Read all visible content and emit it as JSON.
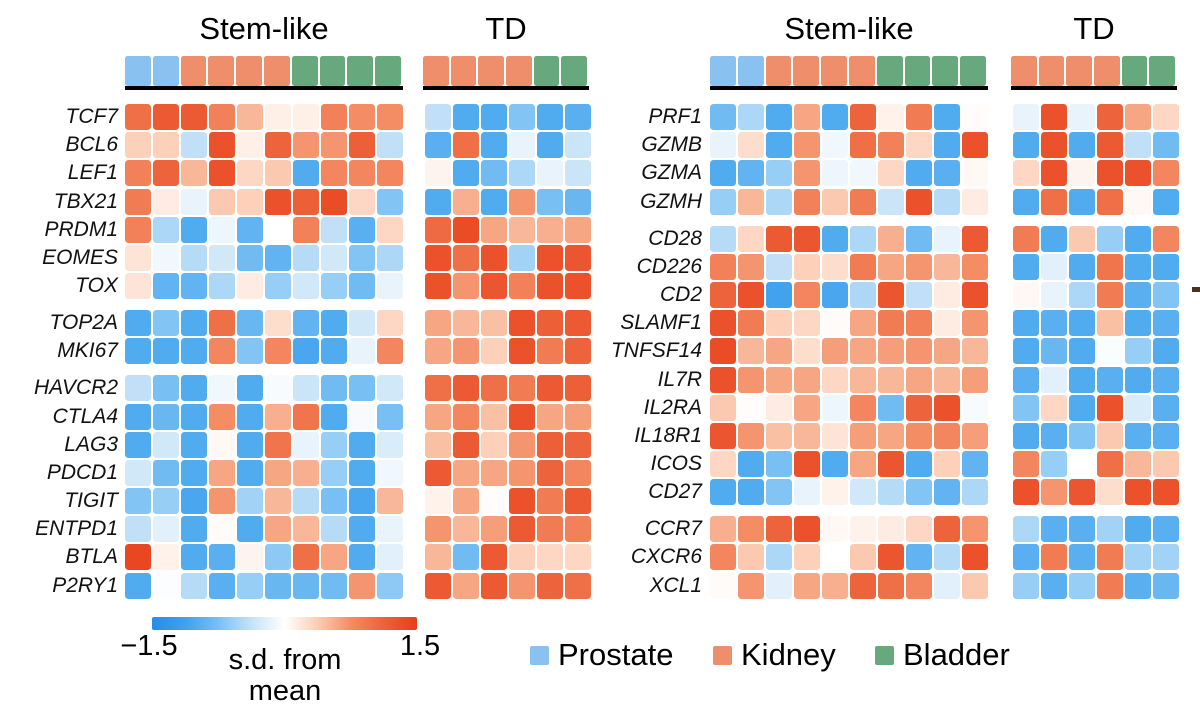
{
  "figure": {
    "colorbar": {
      "min_label": "−1.5",
      "max_label": "1.5",
      "title_line1": "s.d. from",
      "title_line2": "mean"
    },
    "legend": {
      "items": [
        {
          "label": "Prostate",
          "color": "#89c2f0"
        },
        {
          "label": "Kidney",
          "color": "#ee8e6b"
        },
        {
          "label": "Bladder",
          "color": "#67a97c"
        }
      ]
    }
  },
  "chart_data": {
    "type": "heatmap",
    "value_units": "s.d. from mean",
    "value_range": [
      -1.5,
      1.5
    ],
    "colormap": {
      "negative_end": "#3496e6",
      "midpoint": "#ffffff",
      "positive_end": "#e83e1a"
    },
    "column_groups": {
      "stem_label": "Stem-like",
      "td_label": "TD",
      "stem_tissues": [
        "Prostate",
        "Prostate",
        "Kidney",
        "Kidney",
        "Kidney",
        "Kidney",
        "Bladder",
        "Bladder",
        "Bladder",
        "Bladder"
      ],
      "td_tissues": [
        "Kidney",
        "Kidney",
        "Kidney",
        "Kidney",
        "Bladder",
        "Bladder"
      ]
    },
    "tissue_colors": {
      "Prostate": "#89c2f0",
      "Kidney": "#ee8e6b",
      "Bladder": "#67a97c"
    },
    "panels": [
      {
        "groups": [
          {
            "rows": [
              {
                "gene": "TCF7",
                "stem": [
                  1.0,
                  1.2,
                  1.2,
                  0.85,
                  0.5,
                  0.12,
                  0.12,
                  0.85,
                  0.75,
                  0.75
                ],
                "td": [
                  -0.4,
                  -1.0,
                  -1.0,
                  -0.7,
                  -1.0,
                  -0.95
                ]
              },
              {
                "gene": "BCL6",
                "stem": [
                  0.35,
                  0.35,
                  -0.4,
                  1.3,
                  0.12,
                  1.1,
                  0.7,
                  0.7,
                  1.15,
                  -0.4
                ],
                "td": [
                  -0.95,
                  1.0,
                  -1.0,
                  -0.15,
                  -1.0,
                  -0.35
                ]
              },
              {
                "gene": "LEF1",
                "stem": [
                  0.85,
                  1.1,
                  0.5,
                  1.3,
                  0.3,
                  0.4,
                  -1.0,
                  0.8,
                  0.8,
                  0.8
                ],
                "td": [
                  0.08,
                  -1.0,
                  -0.8,
                  -0.5,
                  -0.15,
                  -0.35
                ]
              },
              {
                "gene": "TBX21",
                "stem": [
                  0.9,
                  0.15,
                  -0.15,
                  0.4,
                  0.35,
                  1.3,
                  1.15,
                  1.35,
                  0.3,
                  -0.7
                ],
                "td": [
                  -1.0,
                  0.55,
                  -1.0,
                  0.7,
                  -0.75,
                  -0.85
                ]
              },
              {
                "gene": "PRDM1",
                "stem": [
                  0.85,
                  -0.5,
                  -1.0,
                  -0.12,
                  -0.9,
                  0.0,
                  0.85,
                  -0.4,
                  -0.95,
                  0.3
                ],
                "td": [
                  1.05,
                  1.35,
                  0.6,
                  0.5,
                  0.55,
                  0.6
                ]
              },
              {
                "gene": "EOMES",
                "stem": [
                  0.2,
                  -0.1,
                  -0.45,
                  -0.3,
                  -0.8,
                  -0.9,
                  -0.45,
                  -0.3,
                  -0.7,
                  -0.5
                ],
                "td": [
                  1.3,
                  1.0,
                  1.3,
                  -0.55,
                  1.3,
                  1.25
                ]
              },
              {
                "gene": "TOX",
                "stem": [
                  0.2,
                  -0.9,
                  -0.9,
                  -0.5,
                  0.15,
                  -0.6,
                  -0.3,
                  -0.6,
                  -0.8,
                  -0.15
                ],
                "td": [
                  1.3,
                  0.7,
                  1.25,
                  0.85,
                  1.3,
                  1.3
                ]
              }
            ]
          },
          {
            "rows": [
              {
                "gene": "TOP2A",
                "stem": [
                  -1.0,
                  -0.7,
                  -1.0,
                  1.0,
                  -0.85,
                  0.25,
                  -0.9,
                  -1.0,
                  -0.3,
                  0.3
                ],
                "td": [
                  0.6,
                  0.5,
                  0.45,
                  1.3,
                  1.15,
                  1.2
                ]
              },
              {
                "gene": "MKI67",
                "stem": [
                  -1.0,
                  -1.0,
                  -1.0,
                  0.8,
                  -0.7,
                  0.8,
                  -1.05,
                  -1.0,
                  -0.15,
                  0.8
                ],
                "td": [
                  0.6,
                  0.7,
                  0.35,
                  1.3,
                  0.9,
                  1.1
                ]
              }
            ]
          },
          {
            "rows": [
              {
                "gene": "HAVCR2",
                "stem": [
                  -0.4,
                  -0.75,
                  -1.0,
                  -0.1,
                  -1.0,
                  -0.05,
                  -0.35,
                  -0.8,
                  -0.75,
                  -0.3
                ],
                "td": [
                  1.0,
                  1.2,
                  1.0,
                  0.9,
                  1.2,
                  1.15
                ]
              },
              {
                "gene": "CTLA4",
                "stem": [
                  -1.0,
                  -0.85,
                  -1.0,
                  0.75,
                  -1.0,
                  0.55,
                  0.95,
                  -1.0,
                  -0.05,
                  -0.75
                ],
                "td": [
                  0.6,
                  0.8,
                  0.45,
                  1.3,
                  0.6,
                  0.65
                ]
              },
              {
                "gene": "LAG3",
                "stem": [
                  -1.0,
                  -0.3,
                  -1.0,
                  0.05,
                  -1.0,
                  0.95,
                  -0.15,
                  -0.6,
                  -1.0,
                  -0.25
                ],
                "td": [
                  0.45,
                  1.2,
                  0.35,
                  0.7,
                  1.15,
                  1.1
                ]
              },
              {
                "gene": "PDCD1",
                "stem": [
                  -0.3,
                  -0.8,
                  -1.0,
                  0.6,
                  -1.0,
                  0.6,
                  0.55,
                  -0.6,
                  -1.0,
                  -0.1
                ],
                "td": [
                  1.2,
                  0.6,
                  0.6,
                  0.7,
                  1.1,
                  0.8
                ]
              },
              {
                "gene": "TIGIT",
                "stem": [
                  -0.7,
                  -0.6,
                  -1.05,
                  0.7,
                  -0.55,
                  0.5,
                  -0.45,
                  -0.75,
                  -1.05,
                  0.5
                ],
                "td": [
                  0.1,
                  0.6,
                  0.02,
                  1.3,
                  0.9,
                  1.2
                ]
              },
              {
                "gene": "ENTPD1",
                "stem": [
                  -0.4,
                  -0.2,
                  -1.0,
                  0.03,
                  -1.0,
                  0.6,
                  0.5,
                  -0.45,
                  -1.0,
                  -0.15
                ],
                "td": [
                  0.7,
                  0.5,
                  0.65,
                  1.2,
                  0.9,
                  0.85
                ]
              },
              {
                "gene": "BTLA",
                "stem": [
                  1.4,
                  0.1,
                  -1.0,
                  -0.95,
                  0.08,
                  -0.65,
                  1.0,
                  0.6,
                  -1.0,
                  -0.2
                ],
                "td": [
                  0.5,
                  -0.8,
                  1.2,
                  0.35,
                  0.3,
                  0.3
                ]
              },
              {
                "gene": "P2RY1",
                "stem": [
                  -1.0,
                  -0.02,
                  -0.45,
                  -0.95,
                  -0.6,
                  -0.85,
                  -0.85,
                  -0.8,
                  0.7,
                  -0.65
                ],
                "td": [
                  1.2,
                  0.6,
                  1.2,
                  0.7,
                  1.1,
                  1.0
                ]
              }
            ]
          }
        ]
      },
      {
        "groups": [
          {
            "rows": [
              {
                "gene": "PRF1",
                "stem": [
                  -0.8,
                  -0.5,
                  -1.0,
                  0.6,
                  -1.0,
                  1.1,
                  0.1,
                  0.9,
                  -1.0,
                  0.02
                ],
                "td": [
                  -0.15,
                  1.3,
                  -0.15,
                  1.1,
                  0.6,
                  0.3
                ]
              },
              {
                "gene": "GZMB",
                "stem": [
                  -0.15,
                  0.25,
                  -1.0,
                  0.7,
                  -0.1,
                  1.0,
                  0.85,
                  0.3,
                  -1.0,
                  1.3
                ],
                "td": [
                  -1.0,
                  1.3,
                  -1.0,
                  1.2,
                  -0.4,
                  -0.8
                ]
              },
              {
                "gene": "GZMA",
                "stem": [
                  -1.0,
                  -0.9,
                  -0.6,
                  0.7,
                  -0.12,
                  -0.1,
                  0.3,
                  -1.0,
                  -0.95,
                  0.05
                ],
                "td": [
                  0.3,
                  1.3,
                  0.08,
                  1.3,
                  1.3,
                  0.8
                ]
              },
              {
                "gene": "GZMH",
                "stem": [
                  -0.6,
                  0.5,
                  -0.5,
                  0.85,
                  0.4,
                  0.9,
                  -0.35,
                  1.3,
                  -0.45,
                  0.15
                ],
                "td": [
                  -1.0,
                  1.0,
                  -1.0,
                  1.0,
                  0.05,
                  -1.0
                ]
              }
            ]
          },
          {
            "rows": [
              {
                "gene": "CD28",
                "stem": [
                  -0.45,
                  0.3,
                  1.2,
                  1.25,
                  -1.0,
                  -0.5,
                  0.55,
                  -0.8,
                  -0.15,
                  1.2
                ],
                "td": [
                  0.9,
                  -1.0,
                  0.4,
                  -0.6,
                  -1.0,
                  0.8
                ]
              },
              {
                "gene": "CD226",
                "stem": [
                  0.85,
                  0.7,
                  -0.4,
                  0.35,
                  0.25,
                  0.9,
                  0.6,
                  0.7,
                  0.5,
                  0.75
                ],
                "td": [
                  -1.0,
                  -0.2,
                  -1.0,
                  0.95,
                  -1.0,
                  -1.0
                ]
              },
              {
                "gene": "CD2",
                "stem": [
                  1.1,
                  1.3,
                  -1.1,
                  0.8,
                  -1.05,
                  -0.5,
                  1.25,
                  -0.4,
                  0.15,
                  1.3
                ],
                "td": [
                  0.05,
                  -0.15,
                  -0.5,
                  0.9,
                  -0.95,
                  -0.7
                ]
              },
              {
                "gene": "SLAMF1",
                "stem": [
                  1.3,
                  0.9,
                  0.35,
                  0.3,
                  0.03,
                  0.6,
                  0.9,
                  0.85,
                  0.15,
                  0.7
                ],
                "td": [
                  -1.0,
                  -0.95,
                  -1.0,
                  0.45,
                  -1.0,
                  -0.95
                ]
              },
              {
                "gene": "TNFSF14",
                "stem": [
                  1.35,
                  0.5,
                  0.6,
                  0.25,
                  0.65,
                  0.6,
                  0.65,
                  0.7,
                  0.6,
                  0.5
                ],
                "td": [
                  -1.0,
                  -0.85,
                  -1.0,
                  -0.03,
                  -0.6,
                  -1.0
                ]
              },
              {
                "gene": "IL7R",
                "stem": [
                  1.3,
                  0.7,
                  0.6,
                  0.6,
                  0.3,
                  0.5,
                  0.5,
                  0.6,
                  0.5,
                  0.65
                ],
                "td": [
                  -0.95,
                  -0.2,
                  -1.0,
                  -0.95,
                  -1.0,
                  -0.95
                ]
              },
              {
                "gene": "IL2RA",
                "stem": [
                  0.4,
                  0.02,
                  0.15,
                  0.6,
                  -0.12,
                  0.8,
                  -0.8,
                  1.1,
                  1.3,
                  -0.05
                ],
                "td": [
                  -0.7,
                  0.3,
                  -1.0,
                  1.3,
                  -0.25,
                  -0.95
                ]
              },
              {
                "gene": "IL18R1",
                "stem": [
                  1.25,
                  0.7,
                  0.45,
                  0.5,
                  0.2,
                  0.65,
                  0.6,
                  0.75,
                  0.8,
                  0.65
                ],
                "td": [
                  -1.0,
                  -0.95,
                  -0.7,
                  0.4,
                  -0.95,
                  -0.95
                ]
              },
              {
                "gene": "ICOS",
                "stem": [
                  0.3,
                  -1.0,
                  -0.75,
                  1.3,
                  -1.0,
                  0.6,
                  1.25,
                  -1.0,
                  0.35,
                  -0.9
                ],
                "td": [
                  0.8,
                  -0.6,
                  0.0,
                  1.0,
                  0.5,
                  0.4
                ]
              },
              {
                "gene": "CD27",
                "stem": [
                  -1.0,
                  -1.0,
                  -0.7,
                  -0.15,
                  0.1,
                  -0.3,
                  -0.45,
                  -0.7,
                  -0.9,
                  -0.5
                ],
                "td": [
                  1.3,
                  0.7,
                  1.25,
                  0.25,
                  1.3,
                  1.3
                ]
              }
            ]
          },
          {
            "rows": [
              {
                "gene": "CCR7",
                "stem": [
                  0.55,
                  0.75,
                  1.1,
                  1.3,
                  0.05,
                  0.1,
                  0.15,
                  0.3,
                  1.1,
                  0.7
                ],
                "td": [
                  -0.5,
                  -0.95,
                  -0.95,
                  -0.55,
                  -1.0,
                  -0.95
                ]
              },
              {
                "gene": "CXCR6",
                "stem": [
                  0.8,
                  0.4,
                  -0.5,
                  0.35,
                  0.0,
                  0.4,
                  1.25,
                  -0.9,
                  -0.45,
                  1.3
                ],
                "td": [
                  -0.95,
                  0.9,
                  -0.95,
                  0.9,
                  -0.55,
                  -0.55
                ]
              },
              {
                "gene": "XCL1",
                "stem": [
                  0.03,
                  0.7,
                  -0.2,
                  0.6,
                  0.55,
                  1.1,
                  1.0,
                  0.8,
                  -0.2,
                  0.4
                ],
                "td": [
                  -0.6,
                  -0.95,
                  -0.6,
                  0.9,
                  -0.95,
                  -0.85
                ]
              }
            ]
          }
        ]
      }
    ]
  }
}
